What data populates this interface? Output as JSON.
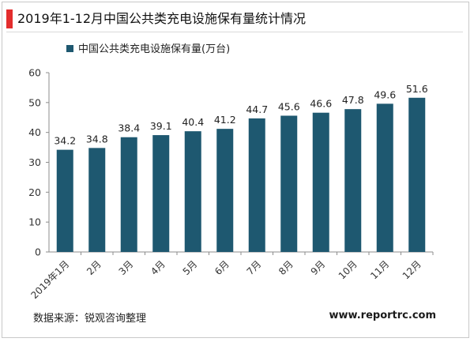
{
  "header": {
    "title": "2019年1-12月中国公共类充电设施保有量统计情况"
  },
  "footer": {
    "source": "数据来源：锐观咨询整理",
    "website": "www.reportrc.com"
  },
  "colors": {
    "bar": "#1e5870",
    "accent": "#e32d2d",
    "axis": "#8c8c8c"
  },
  "chart_data": {
    "type": "bar",
    "title": "",
    "xlabel": "",
    "ylabel": "",
    "categories": [
      "2019年1月",
      "2月",
      "3月",
      "4月",
      "5月",
      "6月",
      "7月",
      "8月",
      "9月",
      "10月",
      "11月",
      "12月"
    ],
    "series": [
      {
        "name": "中国公共类充电设施保有量(万台)",
        "values": [
          34.2,
          34.8,
          38.4,
          39.1,
          40.4,
          41.2,
          44.7,
          45.6,
          46.6,
          47.8,
          49.6,
          51.6
        ]
      }
    ],
    "ylim": [
      0,
      60
    ],
    "yticks": [
      0,
      10,
      20,
      30,
      40,
      50,
      60
    ],
    "grid": false,
    "legend_position": "top-left",
    "data_labels": true
  }
}
